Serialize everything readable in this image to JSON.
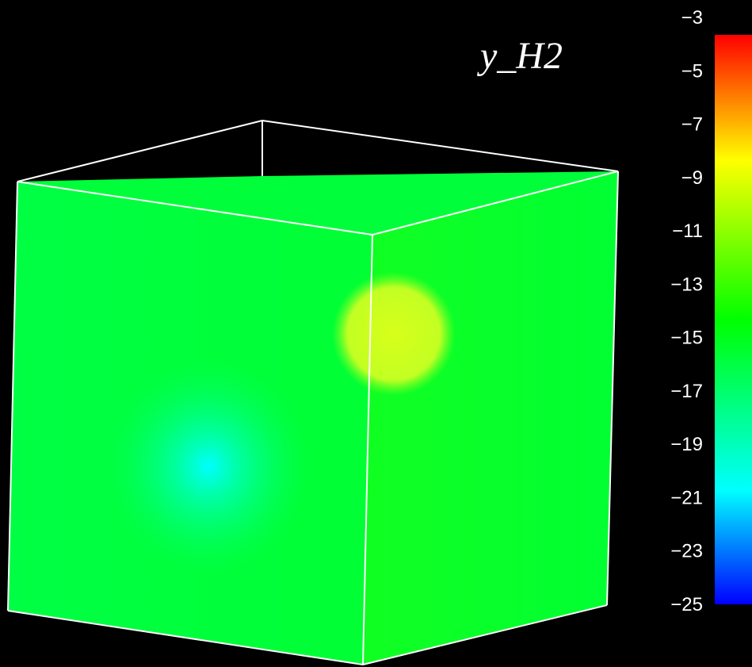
{
  "title": "y_H2",
  "colorbar": {
    "min": -25,
    "max": -3,
    "ticks": [
      "−3",
      "−5",
      "−7",
      "−9",
      "−11",
      "−13",
      "−15",
      "−17",
      "−19",
      "−21",
      "−23",
      "−25"
    ],
    "colors": [
      "#0000ff",
      "#00ffff",
      "#00ff00",
      "#ffff00",
      "#ff0000"
    ]
  },
  "scene": {
    "background_color": "#000000",
    "box_color": "#00ff33",
    "edge_color": "#ffffff",
    "blob_high_color": "#d8ff1a",
    "blob_low_color": "#00ffff"
  }
}
